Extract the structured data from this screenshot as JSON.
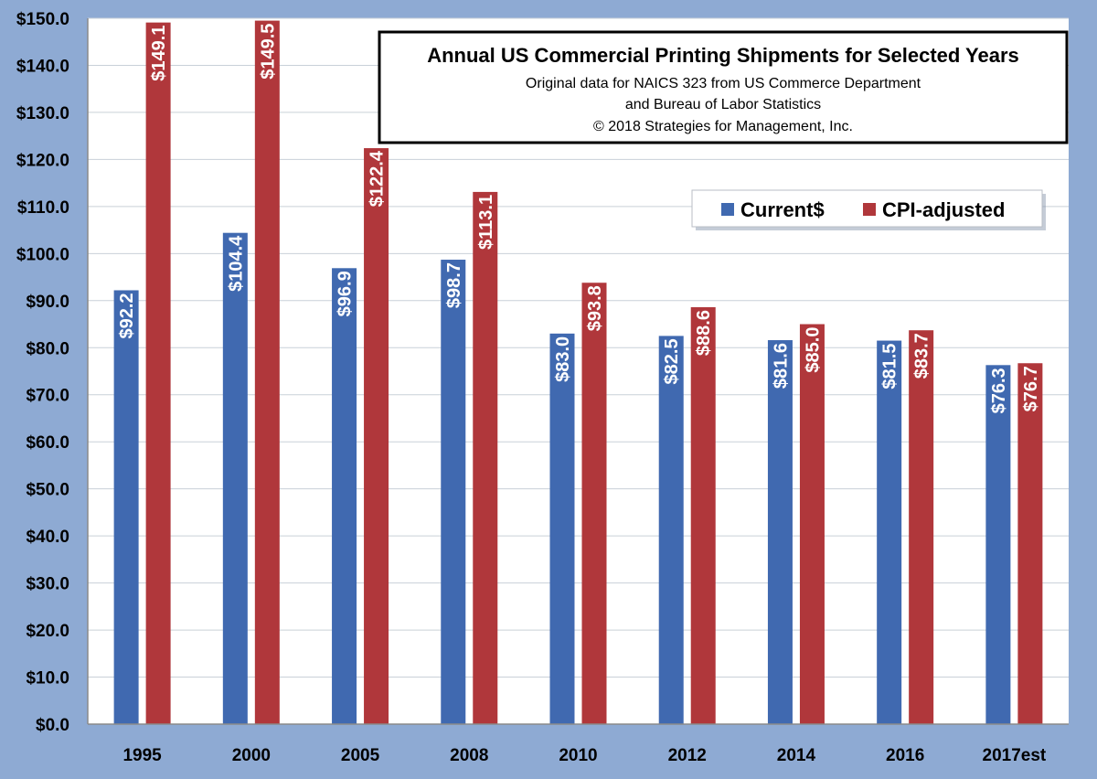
{
  "chart_data": {
    "type": "bar",
    "title": "Annual US Commercial Printing Shipments for Selected Years",
    "subtitle_lines": [
      "Original data for NAICS 323 from US Commerce Department",
      "and Bureau of Labor Statistics",
      "© 2018 Strategies for Management, Inc."
    ],
    "categories": [
      "1995",
      "2000",
      "2005",
      "2008",
      "2010",
      "2012",
      "2014",
      "2016",
      "2017est"
    ],
    "series": [
      {
        "name": "Current$",
        "color": "#4069b0",
        "values": [
          92.2,
          104.4,
          96.9,
          98.7,
          83.0,
          82.5,
          81.6,
          81.5,
          76.3
        ],
        "labels": [
          "$92.2",
          "$104.4",
          "$96.9",
          "$98.7",
          "$83.0",
          "$82.5",
          "$81.6",
          "$81.5",
          "$76.3"
        ]
      },
      {
        "name": "CPI-adjusted",
        "color": "#b0373b",
        "values": [
          149.1,
          149.5,
          122.4,
          113.1,
          93.8,
          88.6,
          85.0,
          83.7,
          76.7
        ],
        "labels": [
          "$149.1",
          "$149.5",
          "$122.4",
          "$113.1",
          "$93.8",
          "$88.6",
          "$85.0",
          "$83.7",
          "$76.7"
        ]
      }
    ],
    "ylim": [
      0,
      150
    ],
    "yticks": [
      0,
      10,
      20,
      30,
      40,
      50,
      60,
      70,
      80,
      90,
      100,
      110,
      120,
      130,
      140,
      150
    ],
    "ytick_labels": [
      "$0.0",
      "$10.0",
      "$20.0",
      "$30.0",
      "$40.0",
      "$50.0",
      "$60.0",
      "$70.0",
      "$80.0",
      "$90.0",
      "$100.0",
      "$110.0",
      "$120.0",
      "$130.0",
      "$140.0",
      "$150.0"
    ],
    "grid": true,
    "legend_position": "top-right",
    "colors": {
      "background": "#8eaad3",
      "plot_area": "#ffffff",
      "gridline": "#c9d0d8"
    }
  }
}
